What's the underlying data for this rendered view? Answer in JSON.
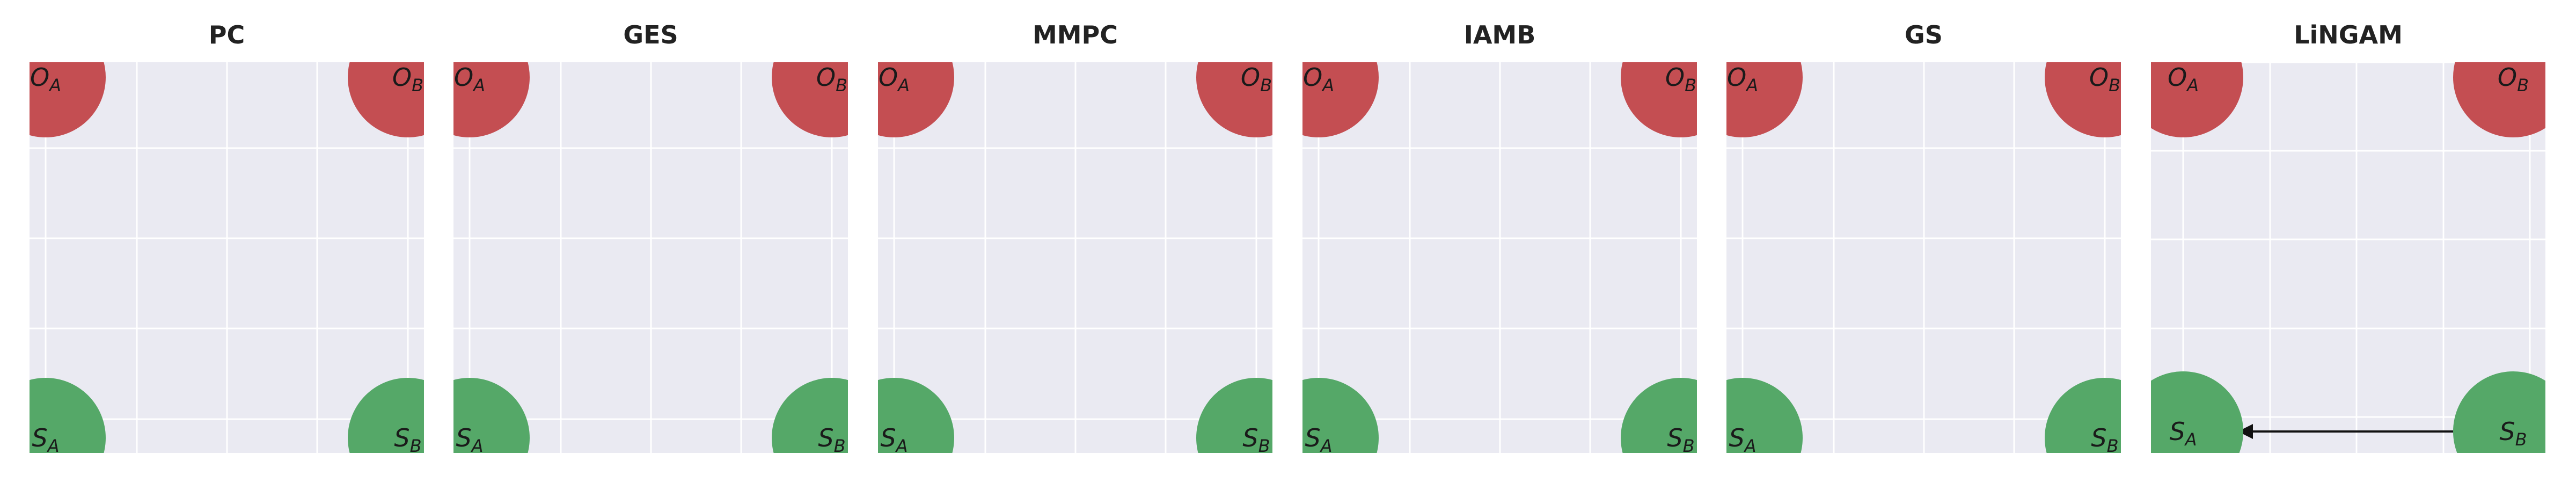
{
  "colors": {
    "plot_background": "#eaeaf2",
    "grid": "#ffffff",
    "outcome_node": "#c44e52",
    "sensitive_node": "#55a868",
    "edge": "#111111"
  },
  "panels": [
    {
      "title": "PC",
      "edges": []
    },
    {
      "title": "GES",
      "edges": []
    },
    {
      "title": "MMPC",
      "edges": []
    },
    {
      "title": "IAMB",
      "edges": []
    },
    {
      "title": "GS",
      "edges": []
    },
    {
      "title": "LiNGAM",
      "edges": [
        {
          "from": "S_B",
          "to": "S_A"
        }
      ]
    }
  ],
  "nodes": [
    {
      "id": "O_A",
      "letter": "O",
      "sub": "A",
      "kind": "outcome"
    },
    {
      "id": "O_B",
      "letter": "O",
      "sub": "B",
      "kind": "outcome"
    },
    {
      "id": "S_A",
      "letter": "S",
      "sub": "A",
      "kind": "sensitive"
    },
    {
      "id": "S_B",
      "letter": "S",
      "sub": "B",
      "kind": "sensitive"
    }
  ]
}
